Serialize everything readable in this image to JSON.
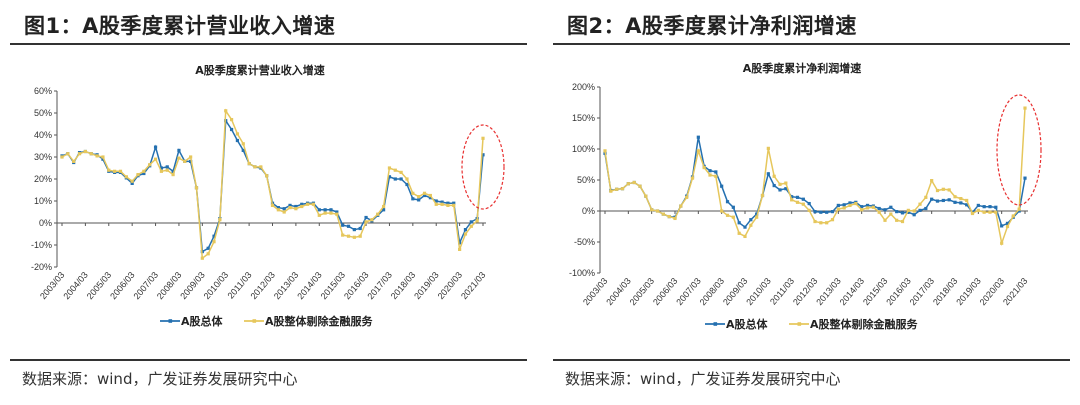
{
  "figures": [
    {
      "label": "图1：A股季度累计营业收入增速",
      "source": "数据来源：wind，广发证券发展研究中心"
    },
    {
      "label": "图2：A股季度累计净利润增速",
      "source": "数据来源：wind，广发证券发展研究中心"
    }
  ],
  "colors": {
    "total": "#2470b0",
    "ex_fin": "#e6c75c",
    "highlight": "#e83030"
  },
  "chart_data": [
    {
      "type": "line",
      "title": "A股季度累计营业收入增速",
      "xlabel": "",
      "ylabel": "",
      "ylim": [
        -20,
        60
      ],
      "yticks": [
        -20,
        -10,
        0,
        10,
        20,
        30,
        40,
        50,
        60
      ],
      "ytick_labels": [
        "-20%",
        "-10%",
        "0%",
        "10%",
        "20%",
        "30%",
        "40%",
        "50%",
        "60%"
      ],
      "x_start": "2003/03",
      "frequency": "quarterly",
      "xtick_labels": [
        "2003/03",
        "2004/03",
        "2005/03",
        "2006/03",
        "2007/03",
        "2008/03",
        "2009/03",
        "2010/03",
        "2011/03",
        "2012/03",
        "2013/03",
        "2014/03",
        "2015/03",
        "2016/03",
        "2017/03",
        "2018/03",
        "2019/03",
        "2020/03",
        "2021/03"
      ],
      "legend_position": "bottom",
      "annotation": "red dashed ellipse around 2021/03",
      "series": [
        {
          "name": "A股总体",
          "values": [
            30.5,
            31.5,
            27.5,
            32,
            32.5,
            31.5,
            31,
            29,
            23.5,
            23,
            23,
            20.5,
            18,
            21.5,
            22.5,
            26,
            34.5,
            25,
            25.5,
            23.5,
            33,
            28,
            28,
            16,
            -13,
            -11.5,
            -6,
            2,
            46.5,
            42.5,
            37.5,
            33,
            27,
            25.5,
            25,
            21.5,
            9,
            7,
            6.5,
            8,
            7.5,
            8.5,
            9,
            9,
            6,
            6,
            6,
            5,
            -1,
            -1.5,
            -3,
            -2.5,
            2.5,
            1,
            3.5,
            6,
            21,
            20,
            20,
            17.5,
            11,
            10.5,
            12.5,
            11.5,
            10,
            9.5,
            9,
            9,
            -9,
            -3,
            0.5,
            2,
            31
          ]
        },
        {
          "name": "A股整体剔除金融服务",
          "values": [
            30,
            31.5,
            28,
            31.5,
            32.5,
            31.5,
            30.5,
            30,
            24,
            23.5,
            23.5,
            21,
            19,
            22,
            23.5,
            26.5,
            29,
            23.5,
            24,
            22,
            29.5,
            28,
            30,
            16,
            -16,
            -14,
            -8.5,
            1.5,
            51,
            47,
            40.5,
            36,
            27,
            25.5,
            25.5,
            21.5,
            8,
            6,
            5,
            7,
            6.5,
            7.5,
            8.5,
            8.5,
            3.5,
            4.5,
            4.5,
            4,
            -5.5,
            -6,
            -6.5,
            -6,
            0.5,
            1.5,
            4,
            7.5,
            25,
            24,
            23,
            20,
            13.5,
            12,
            13.5,
            12.5,
            8.5,
            8.5,
            8,
            8,
            -12,
            -5,
            -1.5,
            1,
            38.5
          ]
        }
      ]
    },
    {
      "type": "line",
      "title": "A股季度累计净利润增速",
      "xlabel": "",
      "ylabel": "",
      "ylim": [
        -100,
        200
      ],
      "yticks": [
        -100,
        -50,
        0,
        50,
        100,
        150,
        200
      ],
      "ytick_labels": [
        "-100%",
        "-50%",
        "0%",
        "50%",
        "100%",
        "150%",
        "200%"
      ],
      "x_start": "2003/03",
      "frequency": "quarterly",
      "xtick_labels": [
        "2003/03",
        "2004/03",
        "2005/03",
        "2006/03",
        "2007/03",
        "2008/03",
        "2009/03",
        "2010/03",
        "2011/03",
        "2012/03",
        "2013/03",
        "2014/03",
        "2015/03",
        "2016/03",
        "2017/03",
        "2018/03",
        "2019/03",
        "2020/03",
        "2021/03"
      ],
      "legend_position": "bottom",
      "annotation": "red dashed ellipse around 2021/03",
      "series": [
        {
          "name": "A股总体",
          "values": [
            93,
            33,
            35,
            36,
            44,
            46,
            40,
            24,
            2,
            0,
            -5,
            -9,
            -10,
            8,
            24,
            55,
            119,
            72,
            65,
            63,
            40,
            15,
            6,
            -19,
            -26,
            -14,
            -5,
            25,
            60,
            41,
            34,
            36,
            23,
            22,
            19,
            12,
            -1,
            -2,
            -2,
            -1,
            9,
            10,
            13,
            14,
            7,
            9,
            8,
            4,
            2,
            6,
            -1,
            -3,
            -2,
            -6,
            1,
            4,
            19,
            16,
            17,
            18,
            14,
            13,
            10,
            -2,
            9,
            7,
            7,
            6,
            -24,
            -20,
            -10,
            0,
            53
          ]
        },
        {
          "name": "A股整体剔除金融服务",
          "values": [
            97,
            32,
            35,
            36,
            44,
            46,
            40,
            24,
            2,
            0,
            -5,
            -9,
            -12,
            8,
            22,
            53,
            97,
            70,
            58,
            56,
            0,
            -7,
            -10,
            -36,
            -41,
            -23,
            -10,
            25,
            101,
            56,
            43,
            45,
            18,
            14,
            11,
            1,
            -17,
            -19,
            -19,
            -14,
            3,
            5,
            9,
            12,
            2,
            5,
            6,
            -2,
            -15,
            -5,
            -15,
            -17,
            1,
            0,
            11,
            22,
            49,
            33,
            35,
            34,
            23,
            20,
            17,
            -4,
            1,
            -2,
            -2,
            -2,
            -52,
            -25,
            -8,
            3,
            166
          ]
        }
      ]
    }
  ]
}
